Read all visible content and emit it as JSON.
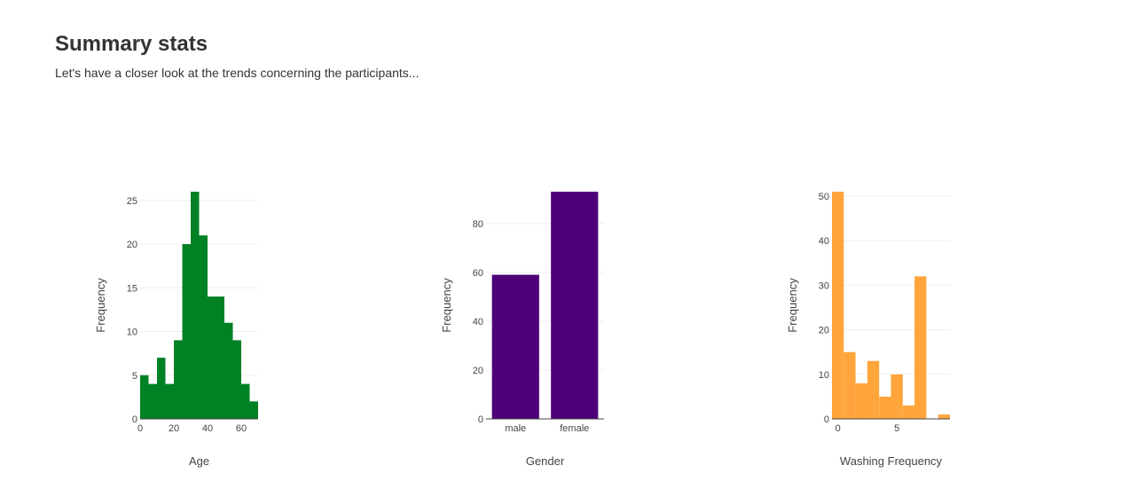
{
  "header": {
    "title": "Summary stats",
    "subtitle": "Let's have a closer look at the trends concerning the participants..."
  },
  "chart_data": [
    {
      "type": "bar",
      "histogram": true,
      "color": "#008124",
      "xlabel": "Age",
      "ylabel": "Frequency",
      "bin_edges": [
        0,
        5,
        10,
        15,
        20,
        25,
        30,
        35,
        40,
        45,
        50,
        55,
        60,
        65,
        70
      ],
      "values": [
        5,
        4,
        7,
        4,
        9,
        20,
        26,
        21,
        14,
        14,
        11,
        9,
        4,
        2
      ],
      "xlim": [
        0,
        70
      ],
      "ylim": [
        0,
        26
      ],
      "x_ticks": [
        0,
        20,
        40,
        60
      ],
      "y_ticks": [
        0,
        5,
        10,
        15,
        20,
        25
      ],
      "grid": true
    },
    {
      "type": "bar",
      "color": "#4d0079",
      "xlabel": "Gender",
      "ylabel": "Frequency",
      "categories": [
        "male",
        "female"
      ],
      "values": [
        59,
        93
      ],
      "ylim": [
        0,
        93
      ],
      "y_ticks": [
        0,
        20,
        40,
        60,
        80
      ],
      "grid": true
    },
    {
      "type": "bar",
      "histogram": true,
      "color": "#ffa53b",
      "xlabel": "Washing Frequency",
      "ylabel": "Frequency",
      "bin_edges": [
        -0.5,
        0.5,
        1.5,
        2.5,
        3.5,
        4.5,
        5.5,
        6.5,
        7.5,
        8.5,
        9.5
      ],
      "values": [
        51,
        15,
        8,
        13,
        5,
        10,
        3,
        32,
        0,
        1
      ],
      "xlim": [
        -0.5,
        9.5
      ],
      "ylim": [
        0,
        51
      ],
      "x_ticks": [
        0,
        5
      ],
      "y_ticks": [
        0,
        10,
        20,
        30,
        40,
        50
      ],
      "grid": true
    }
  ]
}
